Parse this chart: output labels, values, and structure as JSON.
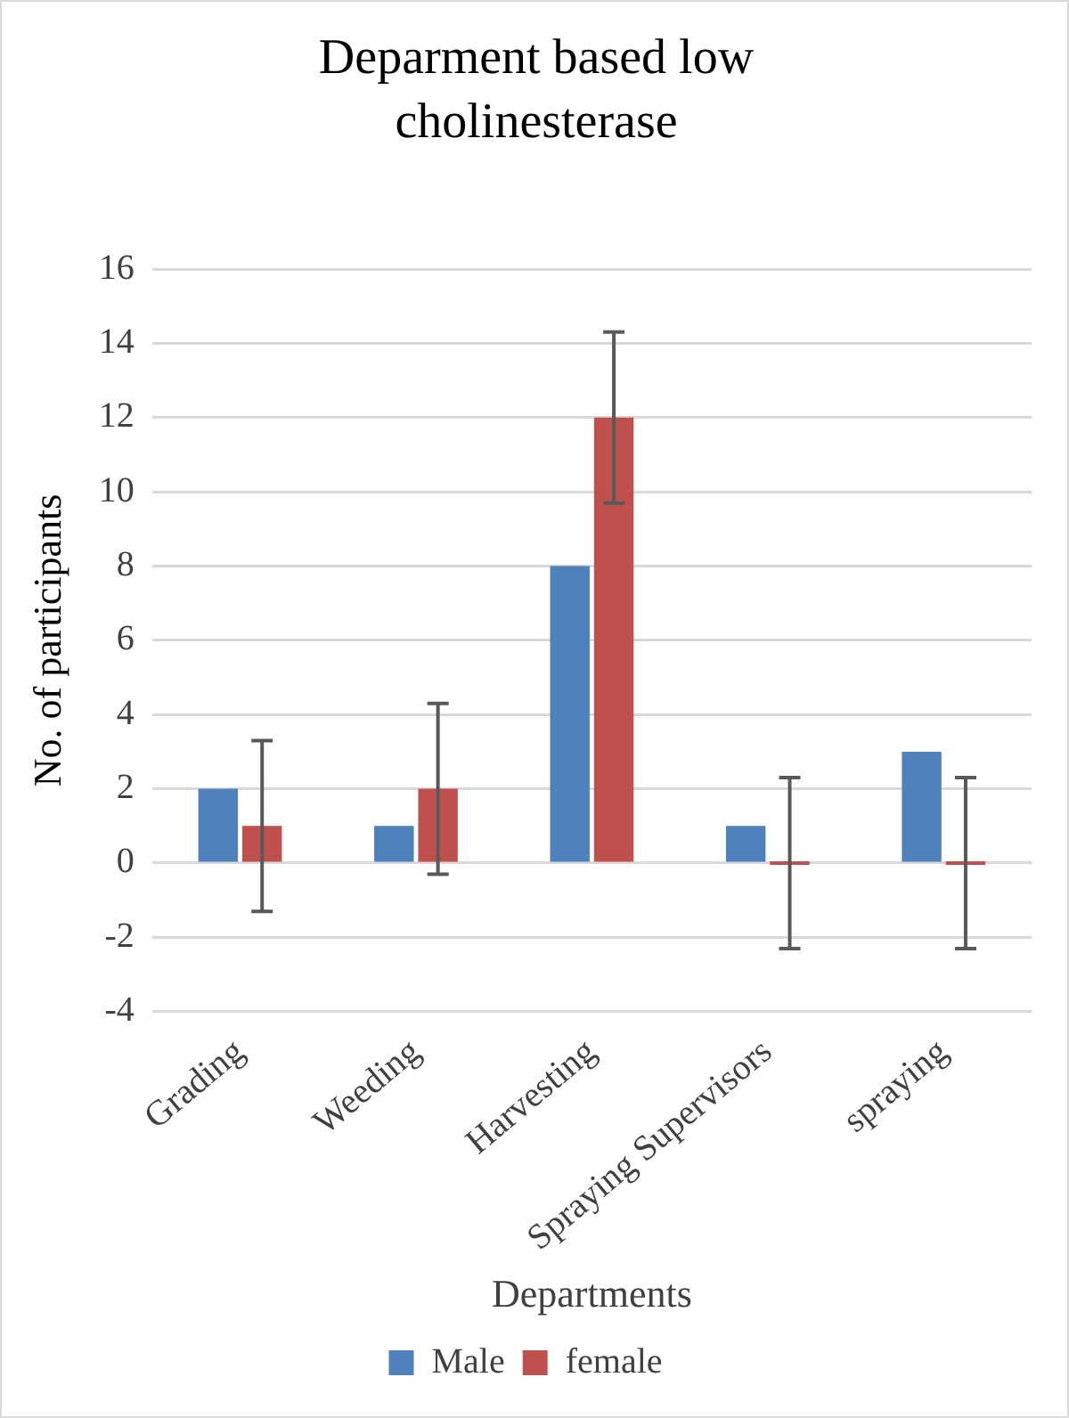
{
  "chart_data": {
    "type": "bar",
    "title": "Deparment based low cholinesterase",
    "xlabel": "Departments",
    "ylabel": "No. of participants",
    "categories": [
      "Grading",
      "Weeding",
      "Harvesting",
      "Spraying Supervisors",
      "spraying"
    ],
    "series": [
      {
        "name": "Male",
        "color": "#4f81bd",
        "values": [
          2,
          1,
          8,
          1,
          3
        ]
      },
      {
        "name": "female",
        "color": "#c0504d",
        "values": [
          1,
          2,
          12,
          0,
          0
        ],
        "errors": [
          2.3,
          2.3,
          2.3,
          2.3,
          2.3
        ]
      }
    ],
    "ylim": [
      -4,
      16
    ],
    "yticks": [
      -4,
      -2,
      0,
      2,
      4,
      6,
      8,
      10,
      12,
      14,
      16
    ],
    "grid": "y",
    "legend": "bottom"
  }
}
